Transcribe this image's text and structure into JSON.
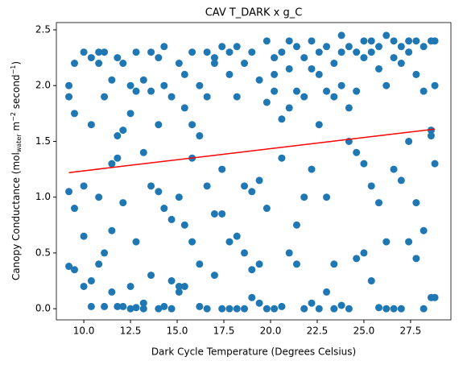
{
  "chart_data": {
    "type": "scatter",
    "title": "CAV T_DARK x g_C",
    "x_label": "Dark Cycle Temperature (Degrees Celsius)",
    "y_label": [
      "Canopy Conductance (mol",
      "water",
      " m",
      "−2",
      " second",
      "−1",
      ")"
    ],
    "color": "#1f77b4",
    "xlim": [
      8.53,
      29.66
    ],
    "ylim": [
      -0.1,
      2.565
    ],
    "xticks": [
      {
        "value": 10,
        "label": "10.0"
      },
      12.5,
      {
        "value": 15,
        "label": "15.0"
      },
      17.5,
      {
        "value": 20,
        "label": "20.0"
      },
      22.5,
      {
        "value": 25,
        "label": "25.0"
      },
      27.5
    ],
    "yticks": [
      {
        "value": 0,
        "label": "0.0"
      },
      0.5,
      {
        "value": 1,
        "label": "1.0"
      },
      1.5,
      {
        "value": 2,
        "label": "2.0"
      },
      2.5
    ],
    "x": [
      9.2,
      9.2,
      9.2,
      9.2,
      9.5,
      9.5,
      9.5,
      9.5,
      10.0,
      10.0,
      10.0,
      10.0,
      10.4,
      10.4,
      10.4,
      10.4,
      10.8,
      10.8,
      10.8,
      10.8,
      11.1,
      11.1,
      11.1,
      11.1,
      11.5,
      11.5,
      11.5,
      11.5,
      11.8,
      11.8,
      11.8,
      11.8,
      12.1,
      12.1,
      12.1,
      12.1,
      12.5,
      12.5,
      12.5,
      12.5,
      12.8,
      12.8,
      12.8,
      12.8,
      13.2,
      13.2,
      13.2,
      13.2,
      13.6,
      13.6,
      13.6,
      13.6,
      14.0,
      14.0,
      14.0,
      14.0,
      14.3,
      14.3,
      14.3,
      14.3,
      14.7,
      14.7,
      14.7,
      14.7,
      15.1,
      15.1,
      15.1,
      15.1,
      15.4,
      15.4,
      15.4,
      15.4,
      15.8,
      15.8,
      15.8,
      15.8,
      16.2,
      16.2,
      16.2,
      16.2,
      16.6,
      16.6,
      16.6,
      16.6,
      17.0,
      17.0,
      17.0,
      17.0,
      17.4,
      17.4,
      17.4,
      17.4,
      17.8,
      17.8,
      17.8,
      17.8,
      18.2,
      18.2,
      18.2,
      18.2,
      18.6,
      18.6,
      18.6,
      18.6,
      19.0,
      19.0,
      19.0,
      19.0,
      19.4,
      19.4,
      19.4,
      19.4,
      19.8,
      19.8,
      19.8,
      19.8,
      20.2,
      20.2,
      20.2,
      20.2,
      20.6,
      20.6,
      20.6,
      20.6,
      21.0,
      21.0,
      21.0,
      21.0,
      21.4,
      21.4,
      21.4,
      21.4,
      21.8,
      21.8,
      21.8,
      21.8,
      22.2,
      22.2,
      22.2,
      22.2,
      22.6,
      22.6,
      22.6,
      22.6,
      23.0,
      23.0,
      23.0,
      23.0,
      23.4,
      23.4,
      23.4,
      23.4,
      23.8,
      23.8,
      23.8,
      23.8,
      24.2,
      24.2,
      24.2,
      24.2,
      24.6,
      24.6,
      24.6,
      24.6,
      25.0,
      25.0,
      25.0,
      25.0,
      25.4,
      25.4,
      25.4,
      25.4,
      25.8,
      25.8,
      25.8,
      25.8,
      26.2,
      26.2,
      26.2,
      26.2,
      26.6,
      26.6,
      26.6,
      26.6,
      27.0,
      27.0,
      27.0,
      27.0,
      27.4,
      27.4,
      27.4,
      27.4,
      27.8,
      27.8,
      27.8,
      27.8,
      28.2,
      28.2,
      28.2,
      28.2,
      28.6,
      28.6,
      28.6,
      28.6,
      28.8,
      28.8,
      28.8,
      28.8
    ],
    "values": [
      2.0,
      1.9,
      1.05,
      0.38,
      2.2,
      1.75,
      0.9,
      0.35,
      2.3,
      1.1,
      0.65,
      0.2,
      2.25,
      1.65,
      0.25,
      0.02,
      2.3,
      2.2,
      1.0,
      0.4,
      2.3,
      1.9,
      0.5,
      0.02,
      2.05,
      1.3,
      0.7,
      0.15,
      2.25,
      1.55,
      1.35,
      0.02,
      2.2,
      1.6,
      0.95,
      0.02,
      2.0,
      1.75,
      0.2,
      0.0,
      2.3,
      1.95,
      0.6,
      0.01,
      2.05,
      1.4,
      0.05,
      0.0,
      2.3,
      1.95,
      1.1,
      0.3,
      2.25,
      1.65,
      1.05,
      0.0,
      2.35,
      2.0,
      0.9,
      0.02,
      1.9,
      0.8,
      0.25,
      0.0,
      2.2,
      1.0,
      0.2,
      0.15,
      2.1,
      1.8,
      0.75,
      0.2,
      2.3,
      1.65,
      1.35,
      0.6,
      2.0,
      1.55,
      0.4,
      0.02,
      2.3,
      1.9,
      1.1,
      0.0,
      2.25,
      2.2,
      0.85,
      0.3,
      2.35,
      1.25,
      0.85,
      0.0,
      2.3,
      2.1,
      0.6,
      0.0,
      2.35,
      1.9,
      0.65,
      0.0,
      2.2,
      1.1,
      0.5,
      0.0,
      2.3,
      1.05,
      0.35,
      0.1,
      2.05,
      1.15,
      0.4,
      0.05,
      2.4,
      1.85,
      0.9,
      0.0,
      2.25,
      2.1,
      1.95,
      0.0,
      2.3,
      1.7,
      1.35,
      0.02,
      2.4,
      2.15,
      1.8,
      0.5,
      2.35,
      1.95,
      0.75,
      0.4,
      2.25,
      1.9,
      1.0,
      0.0,
      2.4,
      2.15,
      1.25,
      0.05,
      2.3,
      2.1,
      1.65,
      0.0,
      2.35,
      1.95,
      1.0,
      0.15,
      2.2,
      1.9,
      0.4,
      0.0,
      2.45,
      2.3,
      2.0,
      0.03,
      2.35,
      1.8,
      1.5,
      0.0,
      2.3,
      1.95,
      1.4,
      0.45,
      2.4,
      2.25,
      1.3,
      0.5,
      2.4,
      2.3,
      1.1,
      0.25,
      2.35,
      2.15,
      0.95,
      0.01,
      2.45,
      2.0,
      0.6,
      0.0,
      2.4,
      2.25,
      1.25,
      0.0,
      2.35,
      2.2,
      1.15,
      0.0,
      2.4,
      2.3,
      1.5,
      0.6,
      2.4,
      2.1,
      0.95,
      0.45,
      2.35,
      1.95,
      0.7,
      0.0,
      2.4,
      1.6,
      1.55,
      0.1,
      2.4,
      2.0,
      1.3,
      0.1
    ],
    "trend": {
      "x": [
        9.2,
        28.8
      ],
      "values": [
        1.22,
        1.61
      ],
      "color": "#ff0000"
    }
  }
}
